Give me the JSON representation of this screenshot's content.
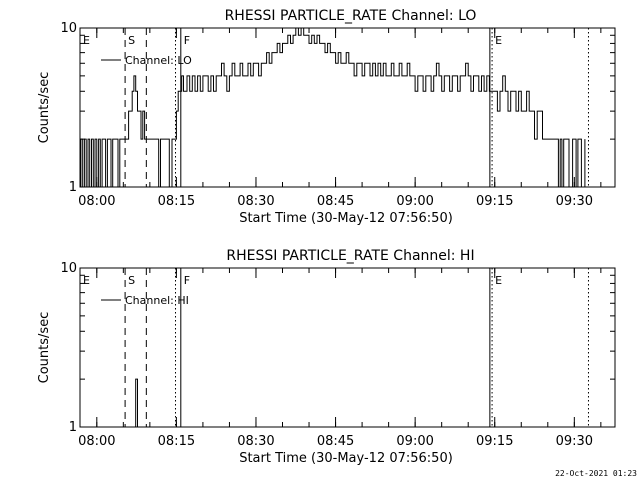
{
  "footer": {
    "timestamp": "22-Oct-2021 01:23"
  },
  "chart_data": [
    {
      "type": "line",
      "title": "RHESSI PARTICLE_RATE Channel: LO",
      "xlabel": "Start Time (30-May-12 07:56:50)",
      "ylabel": "Counts/sec",
      "ylim": [
        1,
        10
      ],
      "yscale": "log",
      "yticks": [
        {
          "value": 1,
          "label": "1"
        },
        {
          "value": 10,
          "label": "10"
        }
      ],
      "xlim": [
        "07:56:50",
        "09:37:40"
      ],
      "xticks": [
        {
          "time": "08:00",
          "label": "08:00"
        },
        {
          "time": "08:15",
          "label": "08:15"
        },
        {
          "time": "08:30",
          "label": "08:30"
        },
        {
          "time": "08:45",
          "label": "08:45"
        },
        {
          "time": "09:00",
          "label": "09:00"
        },
        {
          "time": "09:15",
          "label": "09:15"
        },
        {
          "time": "09:30",
          "label": "09:30"
        }
      ],
      "legend": {
        "entry": "Channel: LO",
        "position": "top-left"
      },
      "markers": [
        {
          "label": "E",
          "time": "07:56:50",
          "style": "none"
        },
        {
          "label": "S",
          "time": "08:05:20",
          "style": "dashed"
        },
        {
          "label": "",
          "time": "08:09:20",
          "style": "dashed"
        },
        {
          "label": "",
          "time": "08:14:50",
          "style": "dotted"
        },
        {
          "label": "F",
          "time": "08:15:50",
          "style": "solid"
        },
        {
          "label": "",
          "time": "09:14:05",
          "style": "solid"
        },
        {
          "label": "E",
          "time": "09:14:30",
          "style": "dotted"
        },
        {
          "label": "",
          "time": "09:32:40",
          "style": "dotted"
        }
      ],
      "series": [
        {
          "points": [
            [
              "07:56:50",
              1
            ],
            [
              "07:57:00",
              2
            ],
            [
              "07:57:20",
              1
            ],
            [
              "07:57:40",
              2
            ],
            [
              "07:58:00",
              1
            ],
            [
              "07:58:20",
              2
            ],
            [
              "07:58:40",
              1
            ],
            [
              "07:59:00",
              2
            ],
            [
              "07:59:20",
              1
            ],
            [
              "07:59:40",
              2
            ],
            [
              "08:00:00",
              1
            ],
            [
              "08:00:20",
              2
            ],
            [
              "08:00:40",
              1
            ],
            [
              "08:01:00",
              2
            ],
            [
              "08:01:20",
              2
            ],
            [
              "08:01:40",
              1
            ],
            [
              "08:02:00",
              2
            ],
            [
              "08:02:20",
              2
            ],
            [
              "08:02:40",
              1
            ],
            [
              "08:03:00",
              2
            ],
            [
              "08:03:20",
              2
            ],
            [
              "08:03:40",
              2
            ],
            [
              "08:04:00",
              1
            ],
            [
              "08:04:20",
              2
            ],
            [
              "08:04:40",
              2
            ],
            [
              "08:05:00",
              2
            ],
            [
              "08:05:20",
              2
            ],
            [
              "08:05:40",
              2
            ],
            [
              "08:06:00",
              3
            ],
            [
              "08:06:20",
              3
            ],
            [
              "08:06:40",
              4
            ],
            [
              "08:07:00",
              5
            ],
            [
              "08:07:20",
              4
            ],
            [
              "08:07:40",
              3
            ],
            [
              "08:08:00",
              3
            ],
            [
              "08:08:20",
              2
            ],
            [
              "08:08:40",
              3
            ],
            [
              "08:09:00",
              2
            ],
            [
              "08:09:20",
              2
            ],
            [
              "08:10:00",
              2
            ],
            [
              "08:11:00",
              2
            ],
            [
              "08:11:40",
              1
            ],
            [
              "08:12:00",
              2
            ],
            [
              "08:13:00",
              2
            ],
            [
              "08:13:40",
              1
            ],
            [
              "08:14:10",
              2
            ],
            [
              "08:14:40",
              2
            ],
            [
              "08:15:00",
              3
            ],
            [
              "08:15:20",
              4
            ],
            [
              "08:15:40",
              4
            ],
            [
              "08:16:00",
              5
            ],
            [
              "08:16:20",
              4
            ],
            [
              "08:17:00",
              5
            ],
            [
              "08:17:30",
              4
            ],
            [
              "08:18:00",
              5
            ],
            [
              "08:18:30",
              4
            ],
            [
              "08:19:00",
              5
            ],
            [
              "08:19:30",
              4
            ],
            [
              "08:20:00",
              5
            ],
            [
              "08:20:30",
              5
            ],
            [
              "08:21:00",
              4
            ],
            [
              "08:21:30",
              5
            ],
            [
              "08:22:00",
              4
            ],
            [
              "08:22:30",
              5
            ],
            [
              "08:23:00",
              5
            ],
            [
              "08:23:30",
              6
            ],
            [
              "08:24:00",
              5
            ],
            [
              "08:24:30",
              4
            ],
            [
              "08:25:00",
              5
            ],
            [
              "08:25:30",
              6
            ],
            [
              "08:26:00",
              5
            ],
            [
              "08:26:30",
              5
            ],
            [
              "08:27:00",
              6
            ],
            [
              "08:27:30",
              5
            ],
            [
              "08:28:00",
              5
            ],
            [
              "08:28:30",
              6
            ],
            [
              "08:29:00",
              5
            ],
            [
              "08:29:30",
              6
            ],
            [
              "08:30:00",
              6
            ],
            [
              "08:30:30",
              5
            ],
            [
              "08:31:00",
              6
            ],
            [
              "08:31:30",
              6
            ],
            [
              "08:32:00",
              7
            ],
            [
              "08:32:30",
              6
            ],
            [
              "08:33:00",
              7
            ],
            [
              "08:33:30",
              7
            ],
            [
              "08:34:00",
              8
            ],
            [
              "08:34:30",
              7
            ],
            [
              "08:35:00",
              8
            ],
            [
              "08:35:30",
              8
            ],
            [
              "08:36:00",
              9
            ],
            [
              "08:36:30",
              8
            ],
            [
              "08:37:00",
              9
            ],
            [
              "08:37:30",
              10
            ],
            [
              "08:38:00",
              9
            ],
            [
              "08:38:30",
              10
            ],
            [
              "08:39:00",
              9
            ],
            [
              "08:39:30",
              9
            ],
            [
              "08:40:00",
              8
            ],
            [
              "08:40:30",
              9
            ],
            [
              "08:41:00",
              8
            ],
            [
              "08:41:30",
              9
            ],
            [
              "08:42:00",
              8
            ],
            [
              "08:42:30",
              8
            ],
            [
              "08:43:00",
              7
            ],
            [
              "08:43:30",
              8
            ],
            [
              "08:44:00",
              7
            ],
            [
              "08:44:30",
              7
            ],
            [
              "08:45:00",
              6
            ],
            [
              "08:45:30",
              7
            ],
            [
              "08:46:00",
              6
            ],
            [
              "08:46:30",
              6
            ],
            [
              "08:47:00",
              7
            ],
            [
              "08:47:30",
              6
            ],
            [
              "08:48:00",
              6
            ],
            [
              "08:48:30",
              5
            ],
            [
              "08:49:00",
              6
            ],
            [
              "08:49:30",
              6
            ],
            [
              "08:50:00",
              5
            ],
            [
              "08:50:30",
              6
            ],
            [
              "08:51:00",
              6
            ],
            [
              "08:51:30",
              5
            ],
            [
              "08:52:00",
              6
            ],
            [
              "08:52:30",
              5
            ],
            [
              "08:53:00",
              6
            ],
            [
              "08:53:30",
              5
            ],
            [
              "08:54:00",
              6
            ],
            [
              "08:54:30",
              5
            ],
            [
              "08:55:00",
              5
            ],
            [
              "08:55:30",
              6
            ],
            [
              "08:56:00",
              5
            ],
            [
              "08:56:30",
              5
            ],
            [
              "08:57:00",
              6
            ],
            [
              "08:57:30",
              5
            ],
            [
              "08:58:00",
              5
            ],
            [
              "08:58:30",
              6
            ],
            [
              "08:59:00",
              5
            ],
            [
              "08:59:30",
              5
            ],
            [
              "09:00:00",
              4
            ],
            [
              "09:00:30",
              5
            ],
            [
              "09:01:00",
              5
            ],
            [
              "09:01:30",
              4
            ],
            [
              "09:02:00",
              5
            ],
            [
              "09:02:30",
              5
            ],
            [
              "09:03:00",
              4
            ],
            [
              "09:03:30",
              5
            ],
            [
              "09:04:00",
              6
            ],
            [
              "09:04:30",
              5
            ],
            [
              "09:05:00",
              4
            ],
            [
              "09:05:30",
              5
            ],
            [
              "09:06:00",
              5
            ],
            [
              "09:06:30",
              4
            ],
            [
              "09:07:00",
              5
            ],
            [
              "09:07:30",
              5
            ],
            [
              "09:08:00",
              4
            ],
            [
              "09:08:30",
              5
            ],
            [
              "09:09:00",
              5
            ],
            [
              "09:09:30",
              6
            ],
            [
              "09:10:00",
              5
            ],
            [
              "09:10:30",
              4
            ],
            [
              "09:11:00",
              5
            ],
            [
              "09:11:30",
              5
            ],
            [
              "09:12:00",
              4
            ],
            [
              "09:12:30",
              5
            ],
            [
              "09:13:00",
              4
            ],
            [
              "09:13:30",
              5
            ],
            [
              "09:14:00",
              4
            ],
            [
              "09:14:30",
              4
            ],
            [
              "09:15:00",
              4
            ],
            [
              "09:15:30",
              3
            ],
            [
              "09:16:00",
              4
            ],
            [
              "09:16:30",
              5
            ],
            [
              "09:17:00",
              4
            ],
            [
              "09:17:30",
              3
            ],
            [
              "09:18:00",
              4
            ],
            [
              "09:18:30",
              4
            ],
            [
              "09:19:00",
              3
            ],
            [
              "09:19:30",
              4
            ],
            [
              "09:20:00",
              3
            ],
            [
              "09:20:30",
              3
            ],
            [
              "09:21:00",
              4
            ],
            [
              "09:21:30",
              3
            ],
            [
              "09:22:00",
              3
            ],
            [
              "09:22:30",
              2
            ],
            [
              "09:23:00",
              3
            ],
            [
              "09:23:30",
              3
            ],
            [
              "09:24:00",
              2
            ],
            [
              "09:24:30",
              2
            ],
            [
              "09:25:00",
              2
            ],
            [
              "09:26:00",
              2
            ],
            [
              "09:27:00",
              1
            ],
            [
              "09:27:20",
              2
            ],
            [
              "09:27:40",
              1
            ],
            [
              "09:28:00",
              2
            ],
            [
              "09:29:00",
              1
            ],
            [
              "09:29:40",
              2
            ],
            [
              "09:30:00",
              2
            ],
            [
              "09:30:20",
              1
            ],
            [
              "09:30:40",
              2
            ],
            [
              "09:31:20",
              1
            ],
            [
              "09:32:00",
              2
            ]
          ]
        }
      ]
    },
    {
      "type": "line",
      "title": "RHESSI PARTICLE_RATE Channel: HI",
      "xlabel": "Start Time (30-May-12 07:56:50)",
      "ylabel": "Counts/sec",
      "ylim": [
        1,
        10
      ],
      "yscale": "log",
      "yticks": [
        {
          "value": 1,
          "label": "1"
        },
        {
          "value": 10,
          "label": "10"
        }
      ],
      "xlim": [
        "07:56:50",
        "09:37:40"
      ],
      "xticks": [
        {
          "time": "08:00",
          "label": "08:00"
        },
        {
          "time": "08:15",
          "label": "08:15"
        },
        {
          "time": "08:30",
          "label": "08:30"
        },
        {
          "time": "08:45",
          "label": "08:45"
        },
        {
          "time": "09:00",
          "label": "09:00"
        },
        {
          "time": "09:15",
          "label": "09:15"
        },
        {
          "time": "09:30",
          "label": "09:30"
        }
      ],
      "legend": {
        "entry": "Channel: HI",
        "position": "top-left"
      },
      "markers": [
        {
          "label": "E",
          "time": "07:56:50",
          "style": "none"
        },
        {
          "label": "S",
          "time": "08:05:20",
          "style": "dashed"
        },
        {
          "label": "",
          "time": "08:09:20",
          "style": "dashed"
        },
        {
          "label": "",
          "time": "08:14:50",
          "style": "dotted"
        },
        {
          "label": "F",
          "time": "08:15:50",
          "style": "solid"
        },
        {
          "label": "",
          "time": "09:14:05",
          "style": "solid"
        },
        {
          "label": "E",
          "time": "09:14:30",
          "style": "dotted"
        },
        {
          "label": "",
          "time": "09:32:40",
          "style": "dotted"
        }
      ],
      "series": [
        {
          "points": [
            [
              "08:07:00",
              1
            ],
            [
              "08:07:10",
              1
            ],
            [
              "08:07:20",
              2
            ],
            [
              "08:07:30",
              2
            ],
            [
              "08:07:40",
              1
            ],
            [
              "08:07:50",
              1
            ]
          ]
        }
      ]
    }
  ]
}
